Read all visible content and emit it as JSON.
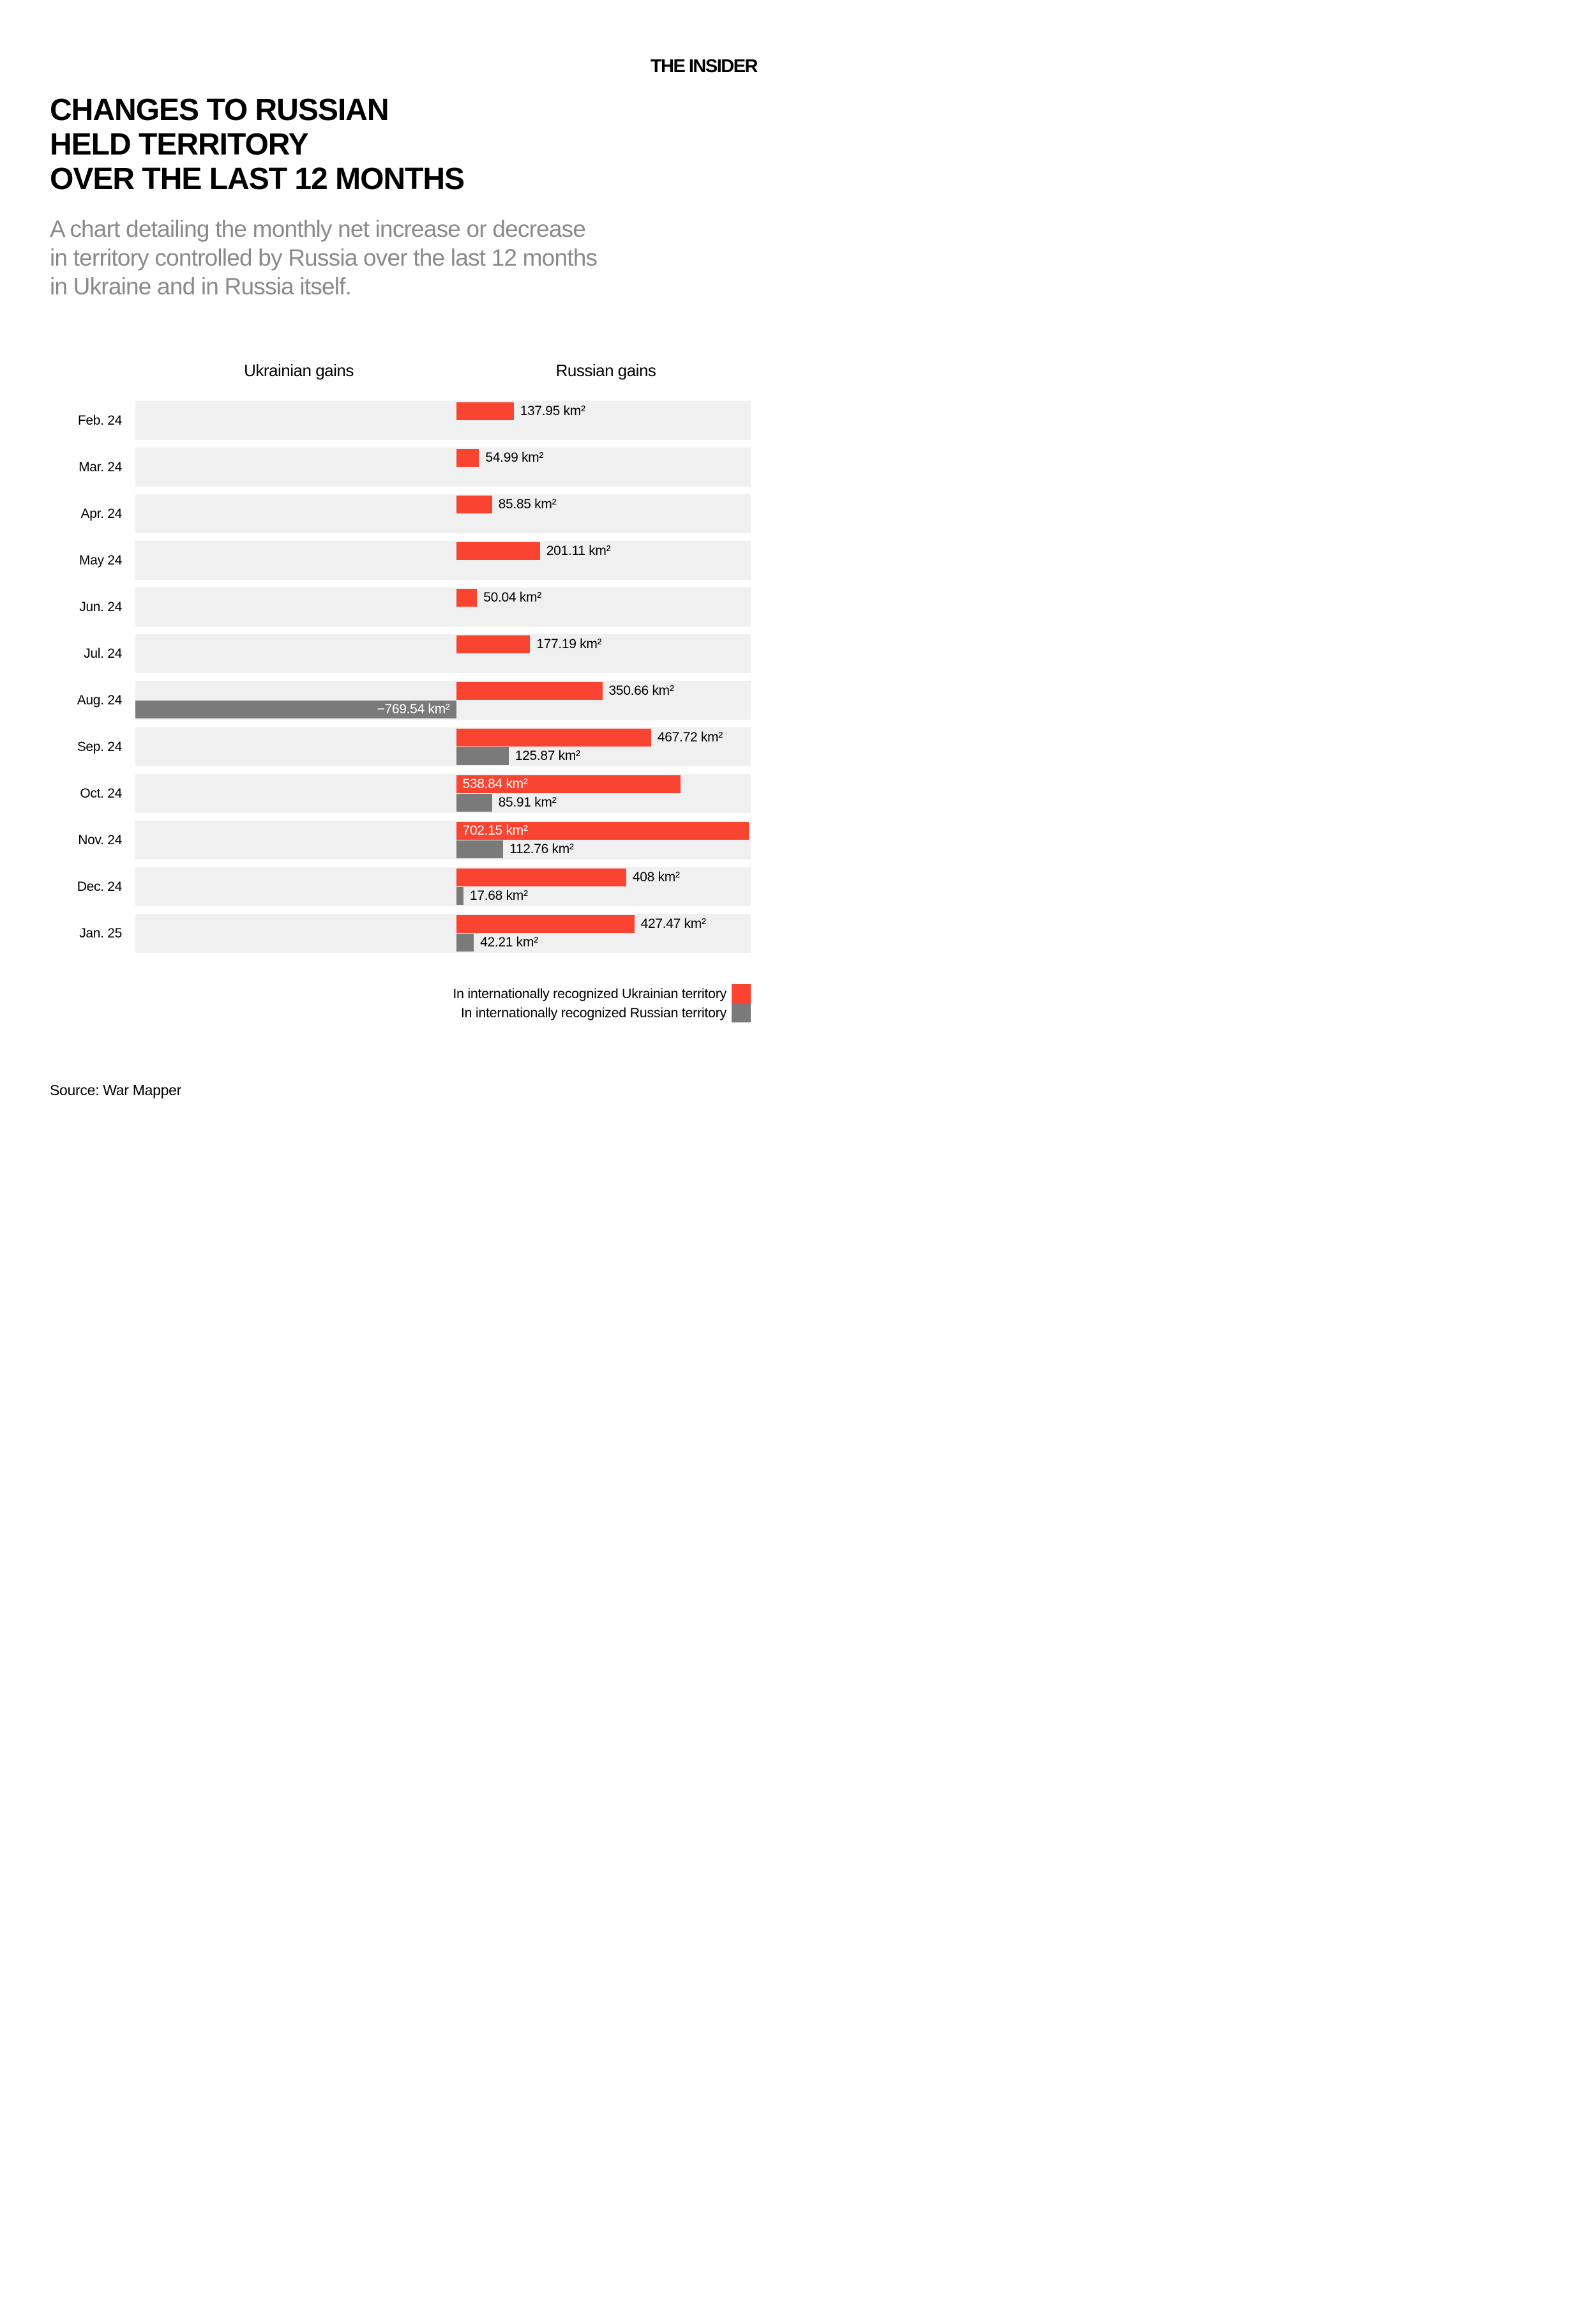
{
  "brand": {
    "logo": "THE INSIDER"
  },
  "header": {
    "title_lines": [
      "CHANGES TO RUSSIAN",
      "HELD TERRITORY",
      "OVER THE LAST 12 MONTHS"
    ],
    "subtitle_lines": [
      "A chart detailing the monthly net increase or decrease",
      "in territory controlled by Russia over the last 12 months",
      "in Ukraine and in Russia itself."
    ]
  },
  "chart": {
    "left_header": "Ukrainian gains",
    "right_header": "Russian gains",
    "unit": "km²",
    "colors": {
      "ukrainian_territory_bar": "#FA4432",
      "russian_territory_bar": "#7A7A7A",
      "row_background": "#F0F0F0",
      "inside_label_text": "#FFFFFF"
    },
    "rows": [
      {
        "month": "Feb. 24",
        "ukr_territory": {
          "value": 137.95,
          "label": "137.95 km²",
          "label_inside": false
        },
        "rus_territory": null
      },
      {
        "month": "Mar. 24",
        "ukr_territory": {
          "value": 54.99,
          "label": "54.99 km²",
          "label_inside": false
        },
        "rus_territory": null
      },
      {
        "month": "Apr. 24",
        "ukr_territory": {
          "value": 85.85,
          "label": "85.85 km²",
          "label_inside": false
        },
        "rus_territory": null
      },
      {
        "month": "May 24",
        "ukr_territory": {
          "value": 201.11,
          "label": "201.11 km²",
          "label_inside": false
        },
        "rus_territory": null
      },
      {
        "month": "Jun. 24",
        "ukr_territory": {
          "value": 50.04,
          "label": "50.04 km²",
          "label_inside": false
        },
        "rus_territory": null
      },
      {
        "month": "Jul. 24",
        "ukr_territory": {
          "value": 177.19,
          "label": "177.19 km²",
          "label_inside": false
        },
        "rus_territory": null
      },
      {
        "month": "Aug. 24",
        "ukr_territory": {
          "value": 350.66,
          "label": "350.66 km²",
          "label_inside": false
        },
        "rus_territory": {
          "value": -769.54,
          "label": "−769.54 km²",
          "label_inside": true
        }
      },
      {
        "month": "Sep. 24",
        "ukr_territory": {
          "value": 467.72,
          "label": "467.72 km²",
          "label_inside": false
        },
        "rus_territory": {
          "value": 125.87,
          "label": "125.87 km²",
          "label_inside": false
        }
      },
      {
        "month": "Oct. 24",
        "ukr_territory": {
          "value": 538.84,
          "label": "538.84 km²",
          "label_inside": true
        },
        "rus_territory": {
          "value": 85.91,
          "label": "85.91 km²",
          "label_inside": false
        }
      },
      {
        "month": "Nov. 24",
        "ukr_territory": {
          "value": 702.15,
          "label": "702.15 km²",
          "label_inside": true
        },
        "rus_territory": {
          "value": 112.76,
          "label": "112.76 km²",
          "label_inside": false
        }
      },
      {
        "month": "Dec. 24",
        "ukr_territory": {
          "value": 408,
          "label": "408 km²",
          "label_inside": false
        },
        "rus_territory": {
          "value": 17.68,
          "label": "17.68 km²",
          "label_inside": false
        }
      },
      {
        "month": "Jan. 25",
        "ukr_territory": {
          "value": 427.47,
          "label": "427.47 km²",
          "label_inside": false
        },
        "rus_territory": {
          "value": 42.21,
          "label": "42.21 km²",
          "label_inside": false
        }
      }
    ]
  },
  "legend": [
    {
      "label": "In internationally recognized Ukrainian territory",
      "color": "#FA4432"
    },
    {
      "label": "In internationally recognized Russian territory",
      "color": "#7A7A7A"
    }
  ],
  "source": "Source: War Mapper",
  "chart_data": {
    "type": "bar",
    "orientation": "horizontal",
    "title": "CHANGES TO RUSSIAN HELD TERRITORY OVER THE LAST 12 MONTHS",
    "subtitle": "A chart detailing the monthly net increase or decrease in territory controlled by Russia over the last 12 months in Ukraine and in Russia itself.",
    "categories": [
      "Feb. 24",
      "Mar. 24",
      "Apr. 24",
      "May 24",
      "Jun. 24",
      "Jul. 24",
      "Aug. 24",
      "Sep. 24",
      "Oct. 24",
      "Nov. 24",
      "Dec. 24",
      "Jan. 25"
    ],
    "series": [
      {
        "name": "In internationally recognized Ukrainian territory",
        "color": "#FA4432",
        "values": [
          137.95,
          54.99,
          85.85,
          201.11,
          50.04,
          177.19,
          350.66,
          467.72,
          538.84,
          702.15,
          408,
          427.47
        ]
      },
      {
        "name": "In internationally recognized Russian territory",
        "color": "#7A7A7A",
        "values": [
          null,
          null,
          null,
          null,
          null,
          null,
          -769.54,
          125.87,
          85.91,
          112.76,
          17.68,
          42.21
        ]
      }
    ],
    "unit": "km²",
    "xlabel": "",
    "ylabel": "",
    "xlim": [
      -769.54,
      702.15
    ],
    "column_headers": [
      "Ukrainian gains",
      "Russian gains"
    ],
    "grid": false,
    "legend_position": "bottom-right",
    "source": "Source: War Mapper"
  }
}
